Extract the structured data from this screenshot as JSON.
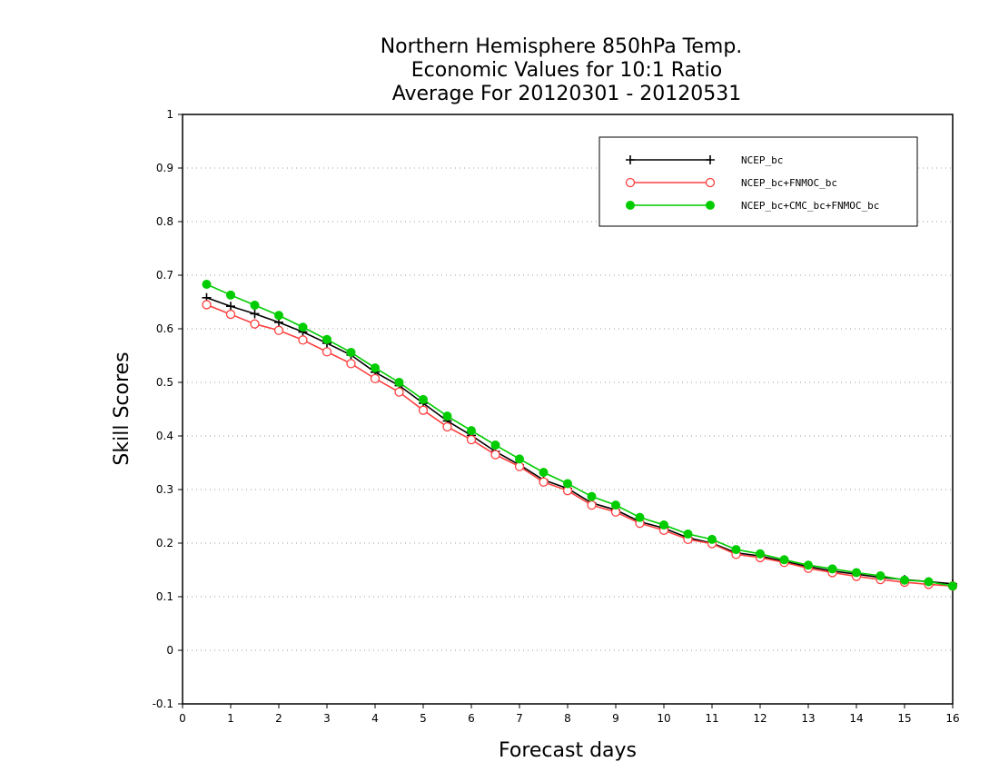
{
  "chart_data": {
    "type": "line",
    "title_lines": [
      "Northern Hemisphere 850hPa Temp.",
      "Economic Values for 10:1 Ratio",
      "Average For 20120301 - 20120531"
    ],
    "xlabel": "Forecast days",
    "ylabel": "Skill Scores",
    "xlim": [
      0,
      16
    ],
    "ylim": [
      -0.1,
      1
    ],
    "x_ticks": [
      "0",
      "1",
      "2",
      "3",
      "4",
      "5",
      "6",
      "7",
      "8",
      "9",
      "10",
      "11",
      "12",
      "13",
      "14",
      "15",
      "16"
    ],
    "y_ticks": [
      "-0.1",
      "0",
      "0.1",
      "0.2",
      "0.3",
      "0.4",
      "0.5",
      "0.6",
      "0.7",
      "0.8",
      "0.9",
      "1"
    ],
    "grid": "horizontal dotted",
    "legend_position": "top-right",
    "x": [
      0.5,
      1,
      1.5,
      2,
      2.5,
      3,
      3.5,
      4,
      4.5,
      5,
      5.5,
      6,
      6.5,
      7,
      7.5,
      8,
      8.5,
      9,
      9.5,
      10,
      10.5,
      11,
      11.5,
      12,
      12.5,
      13,
      13.5,
      14,
      14.5,
      15,
      15.5,
      16
    ],
    "series": [
      {
        "name": "NCEP_bc",
        "color": "#000000",
        "marker": "plus",
        "values": [
          0.658,
          0.642,
          0.628,
          0.612,
          0.594,
          0.573,
          0.551,
          0.519,
          0.494,
          0.461,
          0.428,
          0.401,
          0.371,
          0.346,
          0.318,
          0.302,
          0.275,
          0.262,
          0.24,
          0.228,
          0.21,
          0.2,
          0.182,
          0.176,
          0.166,
          0.156,
          0.148,
          0.142,
          0.136,
          0.132,
          0.128,
          0.124
        ]
      },
      {
        "name": "NCEP_bc+FNMOC_bc",
        "color": "#ff4040",
        "marker": "open-circle",
        "values": [
          0.645,
          0.627,
          0.609,
          0.597,
          0.579,
          0.557,
          0.535,
          0.507,
          0.482,
          0.448,
          0.417,
          0.393,
          0.365,
          0.343,
          0.314,
          0.298,
          0.271,
          0.258,
          0.237,
          0.224,
          0.207,
          0.199,
          0.179,
          0.173,
          0.164,
          0.153,
          0.145,
          0.138,
          0.132,
          0.127,
          0.123,
          0.12
        ]
      },
      {
        "name": "NCEP_bc+CMC_bc+FNMOC_bc",
        "color": "#00cc00",
        "marker": "filled-circle",
        "values": [
          0.683,
          0.663,
          0.644,
          0.625,
          0.603,
          0.58,
          0.556,
          0.527,
          0.5,
          0.468,
          0.437,
          0.41,
          0.383,
          0.357,
          0.332,
          0.311,
          0.287,
          0.271,
          0.248,
          0.234,
          0.217,
          0.207,
          0.188,
          0.18,
          0.169,
          0.159,
          0.152,
          0.145,
          0.139,
          0.131,
          0.128,
          0.12
        ]
      }
    ]
  }
}
